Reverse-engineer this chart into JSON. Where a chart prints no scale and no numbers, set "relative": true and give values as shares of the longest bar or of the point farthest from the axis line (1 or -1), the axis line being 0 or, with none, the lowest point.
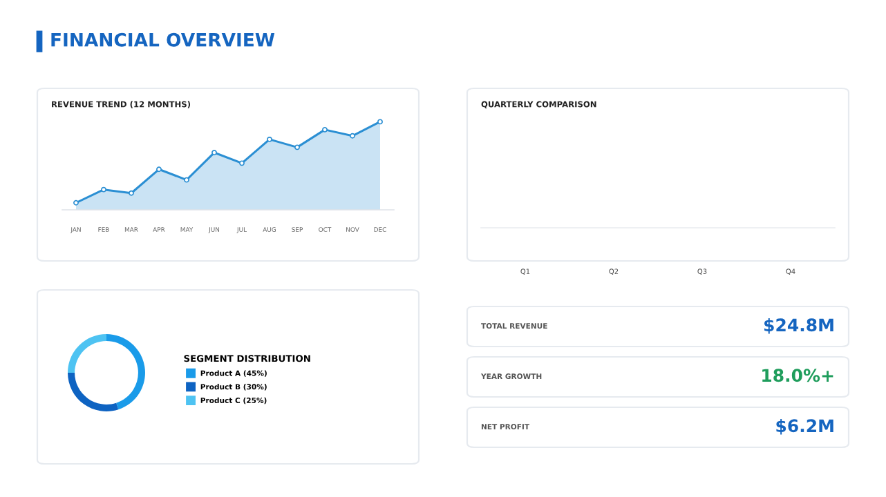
{
  "chart_data": [
    {
      "type": "other",
      "title": "FINANCIAL OVERVIEW"
    },
    {
      "type": "area",
      "title": "REVENUE TREND (12 MONTHS)",
      "categories": [
        "JAN",
        "FEB",
        "MAR",
        "APR",
        "MAY",
        "JUN",
        "JUL",
        "AUG",
        "SEP",
        "OCT",
        "NOV",
        "DEC"
      ],
      "relative": true,
      "marker": "circle",
      "series": [
        {
          "color": "#2b8fd3",
          "values": [
            0.08,
            0.23,
            0.19,
            0.46,
            0.34,
            0.65,
            0.53,
            0.8,
            0.71,
            0.91,
            0.84,
            1.0
          ]
        }
      ]
    },
    {
      "type": "other",
      "title": "QUARTERLY COMPARISON",
      "annotations": [
        "Q1",
        "Q2",
        "Q3",
        "Q4"
      ]
    },
    {
      "type": "donut",
      "legend_title": "SEGMENT DISTRIBUTION",
      "legend": "right",
      "categories": [
        "Product A (45%)",
        "Product B (30%)",
        "Product C (25%)"
      ],
      "values": [
        45,
        30,
        25
      ],
      "colors": [
        "#1a9be9",
        "#0e63c2",
        "#4ec3f2"
      ]
    },
    {
      "type": "other",
      "annotations": [
        "TOTAL REVENUE",
        "$24.8M",
        "YEAR GROWTH",
        "18.0%+",
        "NET PROFIT",
        "$6.2M"
      ]
    }
  ]
}
